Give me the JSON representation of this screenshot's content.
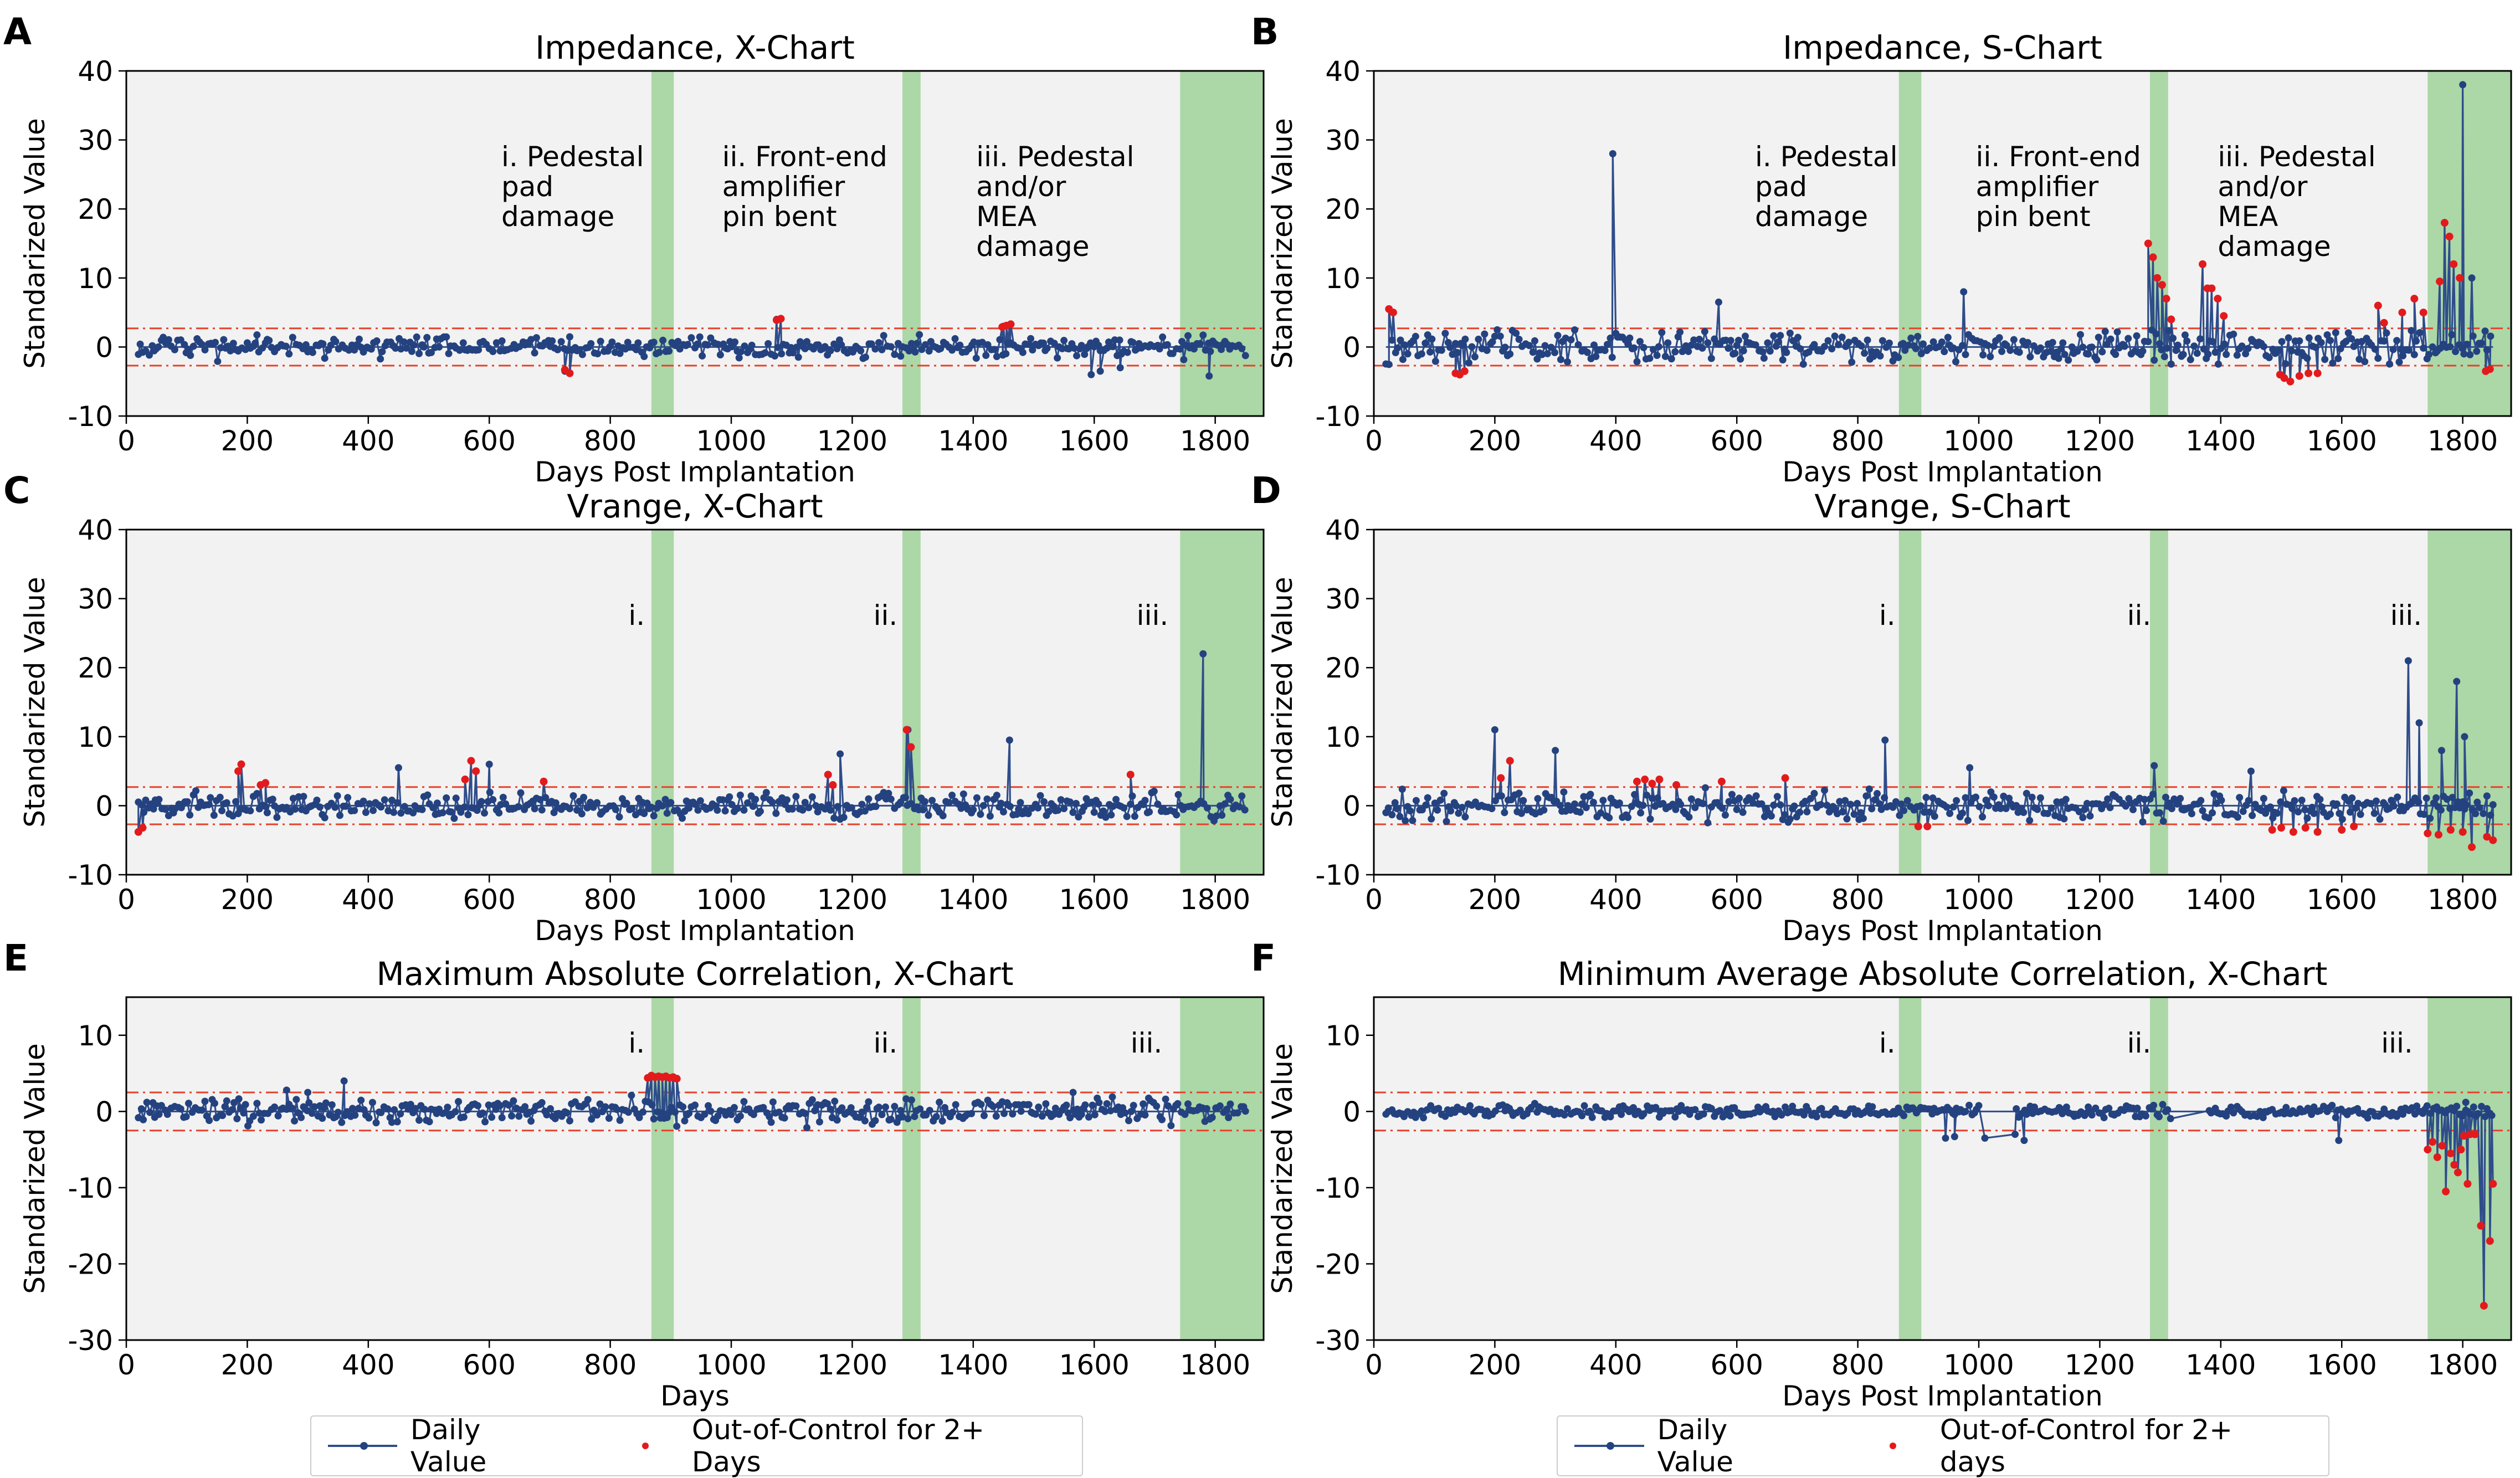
{
  "colors": {
    "line": "#2f4d8a",
    "marker": "#24427f",
    "ooc": "#e31a1c",
    "limit": "#e8402a",
    "band": "#a8d5a2",
    "plotbg": "#f2f2f2"
  },
  "chart_data": [
    {
      "type": "line",
      "letter": "A",
      "title": "Impedance, X-Chart",
      "xlabel": "Days Post Implantation",
      "ylabel": "Standarized Value",
      "xlim": [
        0,
        1880
      ],
      "ylim": [
        -10,
        40
      ],
      "xticks": [
        0,
        200,
        400,
        600,
        800,
        1000,
        1200,
        1400,
        1600,
        1800
      ],
      "yticks": [
        -10,
        0,
        10,
        20,
        30,
        40
      ],
      "ucl": 2.7,
      "lcl": -2.7,
      "bands": [
        [
          868,
          905
        ],
        [
          1283,
          1313
        ],
        [
          1742,
          1880
        ]
      ],
      "annotations": [
        {
          "x": 620,
          "lines": [
            "i. Pedestal",
            "pad",
            "damage"
          ]
        },
        {
          "x": 985,
          "lines": [
            "ii. Front-end",
            "amplifier",
            "pin bent"
          ]
        },
        {
          "x": 1405,
          "lines": [
            "iii. Pedestal",
            "and/or",
            "MEA",
            "damage"
          ]
        }
      ],
      "baseline": 0,
      "seed": 11,
      "noise": 0.9,
      "spikes": [
        [
          725,
          -3.5
        ],
        [
          733,
          -3.8
        ],
        [
          1075,
          4
        ],
        [
          1082,
          4.1
        ],
        [
          1450,
          3
        ],
        [
          1460,
          3.2
        ],
        [
          1595,
          -4
        ],
        [
          1610,
          -3.5
        ],
        [
          1643,
          -3
        ],
        [
          1790,
          -4.2
        ]
      ],
      "ooc": [
        [
          725,
          -3.3
        ],
        [
          733,
          -3.8
        ],
        [
          1075,
          3.9
        ],
        [
          1082,
          4.1
        ],
        [
          1448,
          2.9
        ],
        [
          1455,
          3.1
        ],
        [
          1462,
          3.3
        ]
      ]
    },
    {
      "type": "line",
      "letter": "B",
      "title": "Impedance, S-Chart",
      "xlabel": "Days Post Implantation",
      "ylabel": "Standarized Value",
      "xlim": [
        0,
        1880
      ],
      "ylim": [
        -10,
        40
      ],
      "xticks": [
        0,
        200,
        400,
        600,
        800,
        1000,
        1200,
        1400,
        1600,
        1800
      ],
      "yticks": [
        -10,
        0,
        10,
        20,
        30,
        40
      ],
      "ucl": 2.7,
      "lcl": -2.7,
      "bands": [
        [
          868,
          905
        ],
        [
          1283,
          1313
        ],
        [
          1742,
          1880
        ]
      ],
      "annotations": [
        {
          "x": 630,
          "lines": [
            "i. Pedestal",
            "pad",
            "damage"
          ]
        },
        {
          "x": 995,
          "lines": [
            "ii. Front-end",
            "amplifier",
            "pin bent"
          ]
        },
        {
          "x": 1395,
          "lines": [
            "iii. Pedestal",
            "and/or",
            "MEA",
            "damage"
          ]
        }
      ],
      "baseline": 0,
      "seed": 23,
      "noise": 1.4,
      "spikes": [
        [
          395,
          28
        ],
        [
          570,
          6.5
        ],
        [
          975,
          8
        ],
        [
          1370,
          12
        ],
        [
          1770,
          18
        ],
        [
          1800,
          38
        ],
        [
          1815,
          10
        ]
      ],
      "ooc": [
        [
          25,
          5.5
        ],
        [
          32,
          5
        ],
        [
          135,
          -3.8
        ],
        [
          142,
          -4
        ],
        [
          150,
          -3.5
        ],
        [
          1280,
          15
        ],
        [
          1288,
          13
        ],
        [
          1295,
          10
        ],
        [
          1303,
          9
        ],
        [
          1310,
          7
        ],
        [
          1318,
          4
        ],
        [
          1370,
          12
        ],
        [
          1378,
          8.5
        ],
        [
          1385,
          8.5
        ],
        [
          1395,
          7
        ],
        [
          1405,
          4.5
        ],
        [
          1498,
          -4
        ],
        [
          1505,
          -4.5
        ],
        [
          1515,
          -5
        ],
        [
          1530,
          -4.2
        ],
        [
          1545,
          -3.8
        ],
        [
          1560,
          -3.8
        ],
        [
          1660,
          6
        ],
        [
          1670,
          3.5
        ],
        [
          1700,
          5
        ],
        [
          1720,
          7
        ],
        [
          1735,
          5
        ],
        [
          1762,
          9.5
        ],
        [
          1770,
          18
        ],
        [
          1778,
          16
        ],
        [
          1785,
          12
        ],
        [
          1795,
          10
        ],
        [
          1838,
          -3.5
        ],
        [
          1845,
          -3.2
        ]
      ]
    },
    {
      "type": "line",
      "letter": "C",
      "title": "Vrange, X-Chart",
      "xlabel": "Days Post Implantation",
      "ylabel": "Standarized Value",
      "xlim": [
        0,
        1880
      ],
      "ylim": [
        -10,
        40
      ],
      "xticks": [
        0,
        200,
        400,
        600,
        800,
        1000,
        1200,
        1400,
        1600,
        1800
      ],
      "yticks": [
        -10,
        0,
        10,
        20,
        30,
        40
      ],
      "ucl": 2.7,
      "lcl": -2.7,
      "bands": [
        [
          868,
          905
        ],
        [
          1283,
          1313
        ],
        [
          1742,
          1880
        ]
      ],
      "annotations": [
        {
          "x": 830,
          "lines": [
            "i."
          ]
        },
        {
          "x": 1235,
          "lines": [
            "ii."
          ]
        },
        {
          "x": 1670,
          "lines": [
            "iii."
          ]
        }
      ],
      "baseline": 0,
      "seed": 37,
      "noise": 1.0,
      "spikes": [
        [
          450,
          5.5
        ],
        [
          600,
          6
        ],
        [
          1180,
          7.5
        ],
        [
          1292,
          11
        ],
        [
          1460,
          9.5
        ],
        [
          1780,
          22
        ]
      ],
      "ooc": [
        [
          20,
          -3.8
        ],
        [
          27,
          -3.2
        ],
        [
          185,
          5
        ],
        [
          190,
          6
        ],
        [
          222,
          3
        ],
        [
          230,
          3.3
        ],
        [
          560,
          3.8
        ],
        [
          570,
          6.5
        ],
        [
          578,
          5
        ],
        [
          690,
          3.5
        ],
        [
          1160,
          4.5
        ],
        [
          1168,
          3
        ],
        [
          1290,
          11
        ],
        [
          1297,
          8.5
        ],
        [
          1660,
          4.5
        ]
      ]
    },
    {
      "type": "line",
      "letter": "D",
      "title": "Vrange, S-Chart",
      "xlabel": "Days Post Implantation",
      "ylabel": "Standarized Value",
      "xlim": [
        0,
        1880
      ],
      "ylim": [
        -10,
        40
      ],
      "xticks": [
        0,
        200,
        400,
        600,
        800,
        1000,
        1200,
        1400,
        1600,
        1800
      ],
      "yticks": [
        -10,
        0,
        10,
        20,
        30,
        40
      ],
      "ucl": 2.7,
      "lcl": -2.7,
      "bands": [
        [
          868,
          905
        ],
        [
          1283,
          1313
        ],
        [
          1742,
          1880
        ]
      ],
      "annotations": [
        {
          "x": 835,
          "lines": [
            "i."
          ]
        },
        {
          "x": 1245,
          "lines": [
            "ii."
          ]
        },
        {
          "x": 1680,
          "lines": [
            "iii."
          ]
        }
      ],
      "baseline": 0,
      "seed": 53,
      "noise": 1.3,
      "spikes": [
        [
          200,
          11
        ],
        [
          300,
          8
        ],
        [
          845,
          9.5
        ],
        [
          985,
          5.5
        ],
        [
          1290,
          5.8
        ],
        [
          1450,
          5
        ],
        [
          1710,
          21
        ],
        [
          1728,
          12
        ],
        [
          1765,
          8
        ],
        [
          1790,
          18
        ],
        [
          1803,
          10
        ]
      ],
      "ooc": [
        [
          210,
          4
        ],
        [
          225,
          6.5
        ],
        [
          435,
          3.5
        ],
        [
          448,
          3.8
        ],
        [
          460,
          3.2
        ],
        [
          472,
          3.8
        ],
        [
          500,
          3
        ],
        [
          575,
          3.5
        ],
        [
          680,
          4
        ],
        [
          900,
          -3
        ],
        [
          915,
          -3
        ],
        [
          1485,
          -3.5
        ],
        [
          1500,
          -3.2
        ],
        [
          1520,
          -3.8
        ],
        [
          1540,
          -3.2
        ],
        [
          1560,
          -3.8
        ],
        [
          1600,
          -3.5
        ],
        [
          1620,
          -3
        ],
        [
          1742,
          -4
        ],
        [
          1760,
          -4.2
        ],
        [
          1780,
          -3.5
        ],
        [
          1800,
          -3.8
        ],
        [
          1815,
          -6
        ],
        [
          1840,
          -4.5
        ],
        [
          1850,
          -5
        ]
      ]
    },
    {
      "type": "line",
      "letter": "E",
      "title": "Maximum Absolute Correlation, X-Chart",
      "xlabel": "Days",
      "ylabel": "Standarized Value",
      "xlim": [
        0,
        1880
      ],
      "ylim": [
        -30,
        15
      ],
      "xticks": [
        0,
        200,
        400,
        600,
        800,
        1000,
        1200,
        1400,
        1600,
        1800
      ],
      "yticks": [
        -30,
        -20,
        -10,
        0,
        10
      ],
      "ucl": 2.5,
      "lcl": -2.5,
      "bands": [
        [
          868,
          905
        ],
        [
          1283,
          1313
        ],
        [
          1742,
          1880
        ]
      ],
      "annotations": [
        {
          "x": 830,
          "lines": [
            "i."
          ]
        },
        {
          "x": 1235,
          "lines": [
            "ii."
          ]
        },
        {
          "x": 1660,
          "lines": [
            "iii."
          ]
        }
      ],
      "baseline": 0,
      "seed": 71,
      "noise": 1.0,
      "spikes": [
        [
          360,
          4
        ],
        [
          265,
          2.8
        ],
        [
          300,
          2.5
        ],
        [
          1565,
          2.5
        ]
      ],
      "ooc": [
        [
          862,
          4.4
        ],
        [
          868,
          4.7
        ],
        [
          874,
          4.5
        ],
        [
          880,
          4.6
        ],
        [
          886,
          4.5
        ],
        [
          892,
          4.6
        ],
        [
          898,
          4.4
        ],
        [
          904,
          4.5
        ],
        [
          910,
          4.3
        ]
      ]
    },
    {
      "type": "line",
      "letter": "F",
      "title": "Minimum Average Absolute Correlation, X-Chart",
      "xlabel": "Days Post Implantation",
      "ylabel": "Standarized Value",
      "xlim": [
        0,
        1880
      ],
      "ylim": [
        -30,
        15
      ],
      "xticks": [
        0,
        200,
        400,
        600,
        800,
        1000,
        1200,
        1400,
        1600,
        1800
      ],
      "yticks": [
        -30,
        -20,
        -10,
        0,
        10
      ],
      "ucl": 2.5,
      "lcl": -2.5,
      "bands": [
        [
          868,
          905
        ],
        [
          1283,
          1313
        ],
        [
          1742,
          1880
        ]
      ],
      "annotations": [
        {
          "x": 835,
          "lines": [
            "i."
          ]
        },
        {
          "x": 1245,
          "lines": [
            "ii."
          ]
        },
        {
          "x": 1665,
          "lines": [
            "iii."
          ]
        }
      ],
      "baseline": 0,
      "seed": 97,
      "noise": 0.5,
      "spikes": [
        [
          945,
          -3.5
        ],
        [
          960,
          -3.3
        ],
        [
          1010,
          -3.5
        ],
        [
          1060,
          -3
        ],
        [
          1075,
          -3.8
        ],
        [
          1595,
          -3.8
        ],
        [
          1805,
          1.2
        ]
      ],
      "ooc": [
        [
          1742,
          -5
        ],
        [
          1750,
          -4
        ],
        [
          1758,
          -6
        ],
        [
          1766,
          -4.5
        ],
        [
          1772,
          -10.5
        ],
        [
          1780,
          -5.5
        ],
        [
          1786,
          -7
        ],
        [
          1792,
          -8
        ],
        [
          1797,
          -5
        ],
        [
          1802,
          -3.2
        ],
        [
          1808,
          -9.5
        ],
        [
          1812,
          -3
        ],
        [
          1820,
          -3
        ],
        [
          1830,
          -15
        ],
        [
          1835,
          -25.5
        ],
        [
          1845,
          -17
        ],
        [
          1850,
          -9.5
        ]
      ]
    }
  ],
  "legends": [
    {
      "series": "Daily Value",
      "ooc": "Out-of-Control for 2+ Days"
    },
    {
      "series": "Daily Value",
      "ooc": "Out-of-Control for 2+ days"
    }
  ]
}
